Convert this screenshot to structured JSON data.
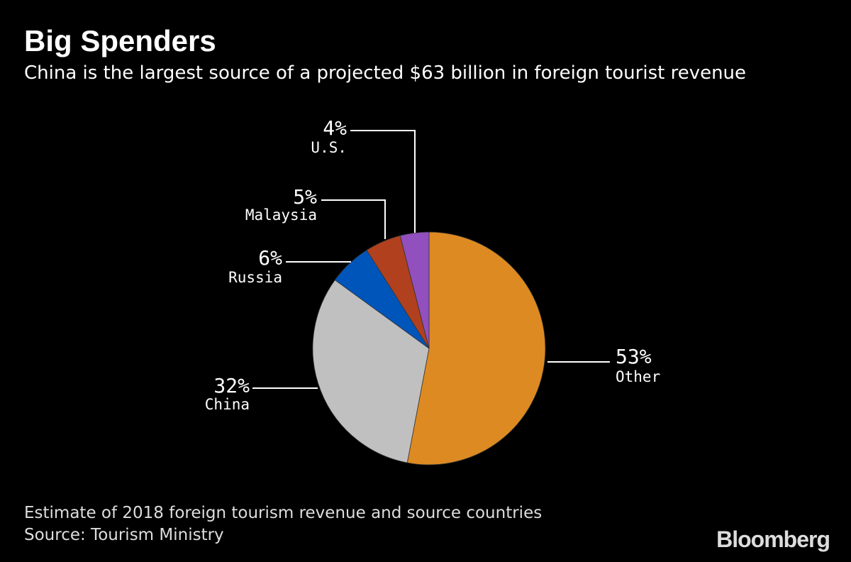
{
  "title": "Big Spenders",
  "subtitle": "China is the largest source of a projected $63 billion in foreign tourist revenue",
  "footnote": "Estimate of 2018 foreign tourism revenue and source countries",
  "source": "Source: Tourism Ministry",
  "logo": "Bloomberg",
  "chart_data": {
    "type": "pie",
    "start": "12 o'clock, clockwise",
    "slices": [
      {
        "label": "Other",
        "value": 53,
        "display": "53%",
        "color": "#DD8A22"
      },
      {
        "label": "China",
        "value": 32,
        "display": "32%",
        "color": "#C0C0C0"
      },
      {
        "label": "Russia",
        "value": 6,
        "display": "6%",
        "color": "#0055BB"
      },
      {
        "label": "Malaysia",
        "value": 5,
        "display": "5%",
        "color": "#B0401E"
      },
      {
        "label": "U.S.",
        "value": 4,
        "display": "4%",
        "color": "#9150BD"
      }
    ]
  }
}
